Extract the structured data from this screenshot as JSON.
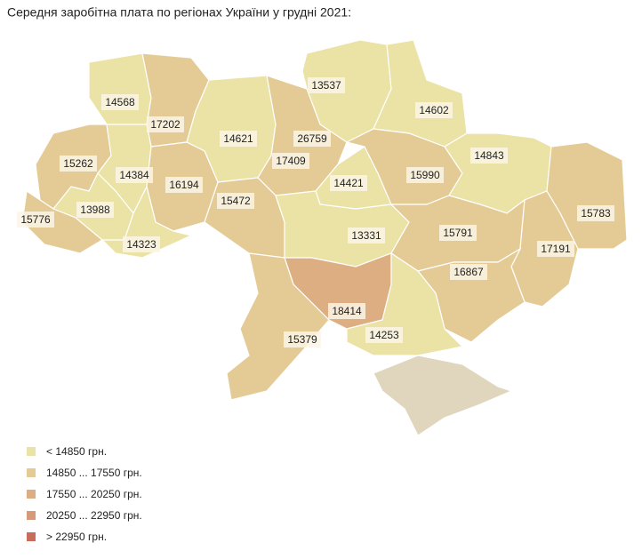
{
  "title": "Середня заробітна плата по регіонах України у грудні 2021:",
  "regions": [
    {
      "value": 14568,
      "color": "#ebe2a6"
    },
    {
      "value": 17202,
      "color": "#e4cb95"
    },
    {
      "value": 14621,
      "color": "#ebe2a6"
    },
    {
      "value": 13537,
      "color": "#ebe2a6"
    },
    {
      "value": 14602,
      "color": "#ebe2a6"
    },
    {
      "value": 26759,
      "color": "#c96c5c"
    },
    {
      "value": 17409,
      "color": "#e4cb95"
    },
    {
      "value": 15262,
      "color": "#e4cb95"
    },
    {
      "value": 14384,
      "color": "#ebe2a6"
    },
    {
      "value": 16194,
      "color": "#e4cb95"
    },
    {
      "value": 14421,
      "color": "#ebe2a6"
    },
    {
      "value": 15990,
      "color": "#e4cb95"
    },
    {
      "value": 14843,
      "color": "#ebe2a6"
    },
    {
      "value": 15472,
      "color": "#e4cb95"
    },
    {
      "value": 13988,
      "color": "#ebe2a6"
    },
    {
      "value": 15776,
      "color": "#e4cb95"
    },
    {
      "value": 14323,
      "color": "#ebe2a6"
    },
    {
      "value": 13331,
      "color": "#ebe2a6"
    },
    {
      "value": 15791,
      "color": "#e4cb95"
    },
    {
      "value": 15783,
      "color": "#e4cb95"
    },
    {
      "value": 17191,
      "color": "#e4cb95"
    },
    {
      "value": 16867,
      "color": "#e4cb95"
    },
    {
      "value": 18414,
      "color": "#dcae82"
    },
    {
      "value": 14253,
      "color": "#ebe2a6"
    },
    {
      "value": 15379,
      "color": "#e4cb95"
    }
  ],
  "legend": [
    {
      "label": "< 14850 грн.",
      "color": "#ebe2a6"
    },
    {
      "label": "14850 ... 17550 грн.",
      "color": "#e4cb95"
    },
    {
      "label": "17550 ... 20250 грн.",
      "color": "#dcae82"
    },
    {
      "label": "20250 ... 22950 грн.",
      "color": "#d6997a"
    },
    {
      "label": "> 22950 грн.",
      "color": "#c96c5c"
    }
  ]
}
